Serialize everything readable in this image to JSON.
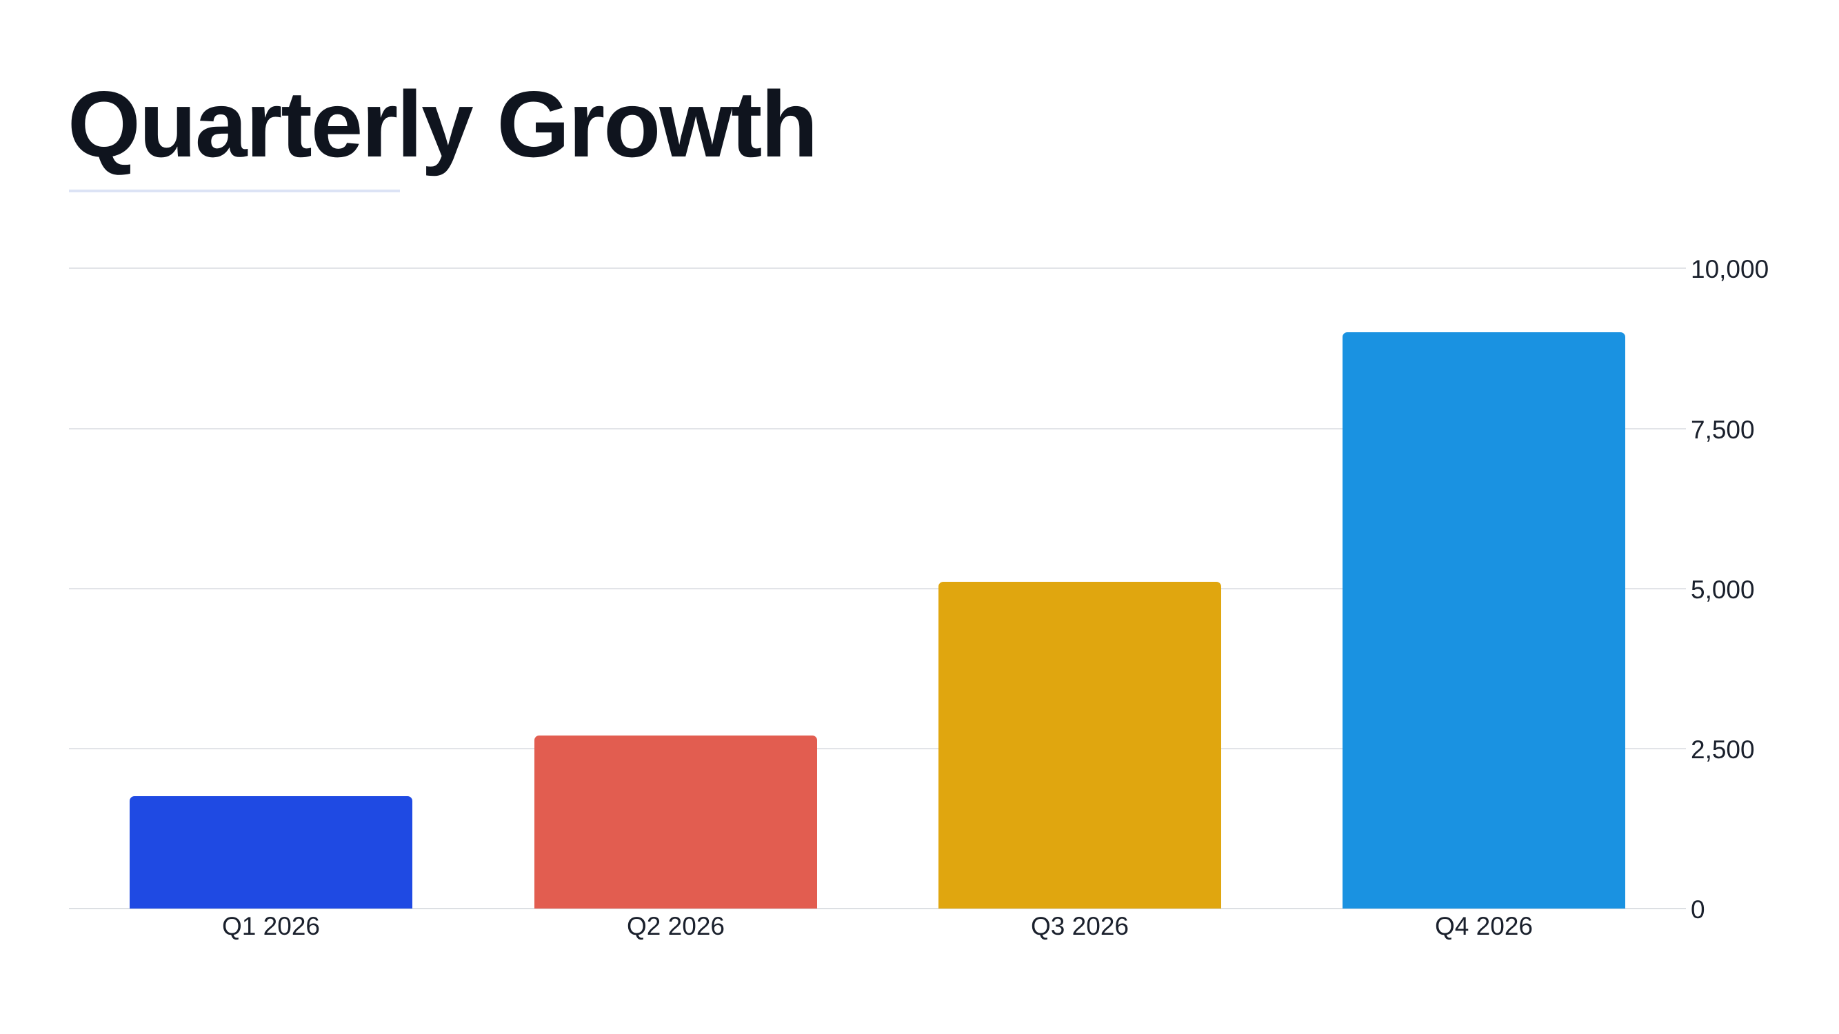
{
  "title": "Quarterly Growth",
  "chart_data": {
    "type": "bar",
    "title": "Quarterly Growth",
    "xlabel": "",
    "ylabel": "",
    "categories": [
      "Q1 2026",
      "Q2 2026",
      "Q3 2026",
      "Q4 2026"
    ],
    "values": [
      1750,
      2700,
      5100,
      9000
    ],
    "colors": [
      "#1f4ae3",
      "#e25d50",
      "#e0a60f",
      "#1a92e1"
    ],
    "ylim": [
      0,
      10000
    ],
    "yticks": [
      0,
      2500,
      5000,
      7500,
      10000
    ],
    "ytick_labels": [
      "0",
      "2,500",
      "5,000",
      "7,500",
      "10,000"
    ],
    "y_axis_position": "right",
    "grid": true,
    "legend": null
  },
  "axis": {
    "y": {
      "t0": "0",
      "t1": "2,500",
      "t2": "5,000",
      "t3": "7,500",
      "t4": "10,000"
    },
    "x": {
      "q1": "Q1 2026",
      "q2": "Q2 2026",
      "q3": "Q3 2026",
      "q4": "Q4 2026"
    }
  }
}
